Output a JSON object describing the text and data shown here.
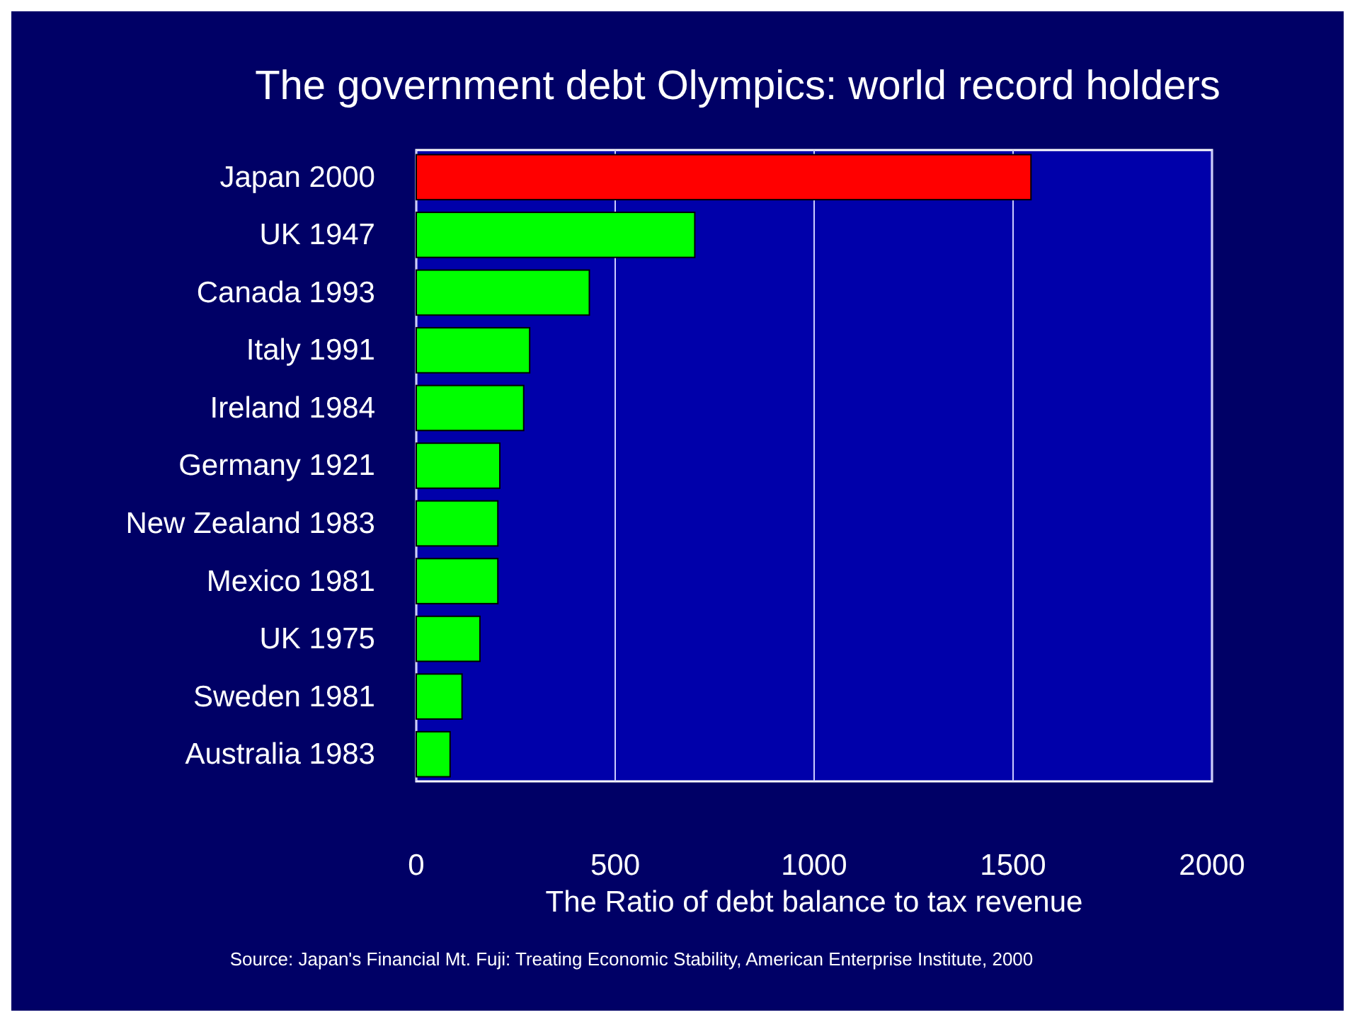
{
  "chart_data": {
    "type": "bar",
    "orientation": "horizontal",
    "title": "The government debt Olympics: world record holders",
    "categories": [
      "Japan 2000",
      "UK 1947",
      "Canada 1993",
      "Italy 1991",
      "Ireland 1984",
      "Germany 1921",
      "New Zealand 1983",
      "Mexico 1981",
      "UK 1975",
      "Sweden 1981",
      "Australia 1983"
    ],
    "values": [
      1545,
      700,
      435,
      285,
      270,
      210,
      205,
      205,
      160,
      115,
      85
    ],
    "colors": [
      "#ff0000",
      "#00ff00",
      "#00ff00",
      "#00ff00",
      "#00ff00",
      "#00ff00",
      "#00ff00",
      "#00ff00",
      "#00ff00",
      "#00ff00",
      "#00ff00"
    ],
    "xlim": [
      0,
      2000
    ],
    "xticks": [
      0,
      500,
      1000,
      1500,
      2000
    ],
    "grid": "x",
    "xlabel": "The Ratio of debt balance to tax revenue",
    "annotations": [
      "Source: Japan's Financial Mt. Fuji: Treating Economic Stability, American Enterprise Institute, 2000"
    ]
  }
}
